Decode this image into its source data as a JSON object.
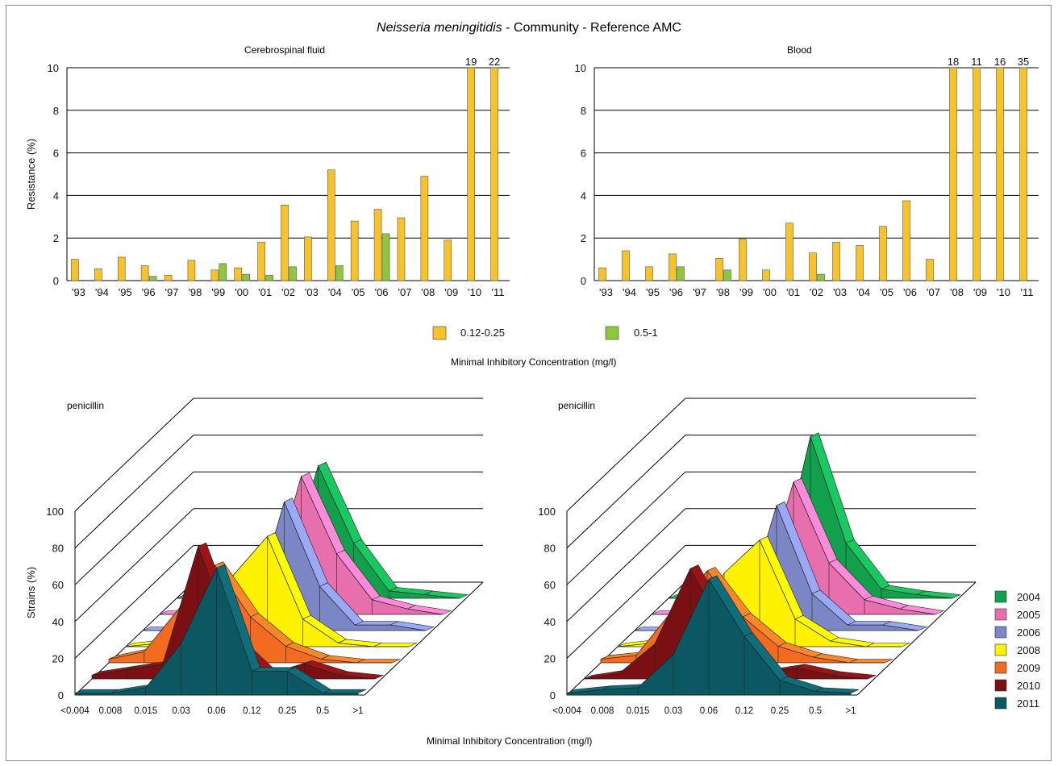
{
  "title": {
    "species": "Neisseria meningitidis",
    "rest": " - Community - Reference AMC"
  },
  "colors": {
    "c012": "#f8c328",
    "c05": "#8dc63f",
    "y2004": "#13a04d",
    "y2005": "#e86fae",
    "y2006": "#7b87c5",
    "y2008": "#fff200",
    "y2009": "#f26b21",
    "y2010": "#7b1014",
    "y2011": "#0b5863"
  },
  "top_common": {
    "ylabel": "Resistance (%)",
    "yticks": [
      "0",
      "2",
      "4",
      "6",
      "8",
      "10"
    ],
    "legend": [
      "0.12-0.25",
      "0.5-1"
    ],
    "xlabel": "Minimal Inhibitory Concentration (mg/l)"
  },
  "bottom_common": {
    "ylabel": "Strains (%)",
    "yticks": [
      "0",
      "20",
      "40",
      "60",
      "80",
      "100"
    ],
    "xticks": [
      "<0.004",
      "0.008",
      "0.015",
      "0.03",
      "0.06",
      "0.12",
      "0.25",
      "0.5",
      ">1"
    ],
    "xlabel": "Minimal Inhibitory Concentration (mg/l)",
    "legend": [
      "2004",
      "2005",
      "2006",
      "2008",
      "2009",
      "2010",
      "2011"
    ]
  },
  "chart_data": [
    {
      "type": "bar",
      "title": "Cerebrospinal fluid",
      "ylabel": "Resistance (%)",
      "ylim": [
        0,
        10
      ],
      "categories": [
        "'93",
        "'94",
        "'95",
        "'96",
        "'97",
        "'98",
        "'99",
        "'00",
        "'01",
        "'02",
        "'03",
        "'04",
        "'05",
        "'06",
        "'07",
        "'08",
        "'09",
        "'10",
        "'11"
      ],
      "series": [
        {
          "name": "0.12-0.25",
          "values": [
            1.0,
            0.55,
            1.1,
            0.7,
            0.25,
            0.95,
            0.5,
            0.6,
            1.8,
            3.55,
            2.05,
            5.2,
            2.8,
            3.35,
            2.95,
            4.9,
            1.9,
            10,
            10
          ]
        },
        {
          "name": "0.5-1",
          "values": [
            0,
            0,
            0,
            0.2,
            0,
            0,
            0.8,
            0.3,
            0.25,
            0.65,
            0,
            0.7,
            0,
            2.2,
            0,
            0,
            0,
            0,
            0
          ]
        }
      ],
      "annotations": [
        {
          "category": "'10",
          "label": "19"
        },
        {
          "category": "'11",
          "label": "22"
        }
      ]
    },
    {
      "type": "bar",
      "title": "Blood",
      "ylim": [
        0,
        10
      ],
      "categories": [
        "'93",
        "'94",
        "'95",
        "'96",
        "'97",
        "'98",
        "'99",
        "'00",
        "'01",
        "'02",
        "'03",
        "'04",
        "'05",
        "'06",
        "'07",
        "'08",
        "'09",
        "'10",
        "'11"
      ],
      "series": [
        {
          "name": "0.12-0.25",
          "values": [
            0.6,
            1.4,
            0.65,
            1.25,
            0,
            1.05,
            1.95,
            0.5,
            2.7,
            1.3,
            1.8,
            1.65,
            2.55,
            3.75,
            1.0,
            10,
            10,
            10,
            10
          ]
        },
        {
          "name": "0.5-1",
          "values": [
            0,
            0,
            0,
            0.65,
            0,
            0.5,
            0,
            0,
            0,
            0.3,
            0,
            0,
            0,
            0,
            0,
            0,
            0,
            0,
            0
          ]
        }
      ],
      "annotations": [
        {
          "category": "'08",
          "label": "18"
        },
        {
          "category": "'09",
          "label": "11"
        },
        {
          "category": "'10",
          "label": "16"
        },
        {
          "category": "'11",
          "label": "35"
        }
      ]
    },
    {
      "type": "area",
      "title": "penicillin",
      "ylabel": "Strains (%)",
      "ylim": [
        0,
        100
      ],
      "x": [
        "<0.004",
        "0.008",
        "0.015",
        "0.03",
        "0.06",
        "0.12",
        "0.25",
        "0.5",
        ">1"
      ],
      "series": [
        {
          "name": "2004",
          "values": [
            0,
            0,
            2,
            5,
            72,
            30,
            4,
            2,
            0
          ]
        },
        {
          "name": "2005",
          "values": [
            0,
            0,
            2,
            7,
            75,
            33,
            8,
            3,
            0
          ]
        },
        {
          "name": "2006",
          "values": [
            0,
            0,
            0,
            3,
            70,
            24,
            3,
            3,
            0
          ]
        },
        {
          "name": "2008",
          "values": [
            0,
            2,
            7,
            38,
            60,
            15,
            2,
            0,
            0
          ]
        },
        {
          "name": "2009",
          "values": [
            2,
            6,
            30,
            53,
            25,
            9,
            2,
            0,
            0
          ]
        },
        {
          "name": "2010",
          "values": [
            2,
            5,
            8,
            72,
            20,
            2,
            8,
            2,
            0
          ]
        },
        {
          "name": "2011",
          "values": [
            1,
            1,
            4,
            28,
            69,
            13,
            13,
            1,
            1
          ]
        }
      ]
    },
    {
      "type": "area",
      "title": "penicillin",
      "ylim": [
        0,
        100
      ],
      "x": [
        "<0.004",
        "0.008",
        "0.015",
        "0.03",
        "0.06",
        "0.12",
        "0.25",
        "0.5",
        ">1"
      ],
      "series": [
        {
          "name": "2004",
          "values": [
            0,
            0,
            2,
            5,
            88,
            30,
            5,
            2,
            0
          ]
        },
        {
          "name": "2005",
          "values": [
            0,
            0,
            2,
            7,
            72,
            28,
            8,
            3,
            0
          ]
        },
        {
          "name": "2006",
          "values": [
            0,
            0,
            0,
            3,
            68,
            20,
            3,
            3,
            0
          ]
        },
        {
          "name": "2008",
          "values": [
            0,
            2,
            7,
            40,
            58,
            15,
            3,
            0,
            0
          ]
        },
        {
          "name": "2009",
          "values": [
            2,
            4,
            28,
            50,
            25,
            9,
            3,
            0,
            0
          ]
        },
        {
          "name": "2010",
          "values": [
            0,
            3,
            19,
            60,
            25,
            3,
            6,
            2,
            0
          ]
        },
        {
          "name": "2011",
          "values": [
            1,
            3,
            4,
            22,
            63,
            32,
            8,
            2,
            1
          ]
        }
      ]
    }
  ]
}
